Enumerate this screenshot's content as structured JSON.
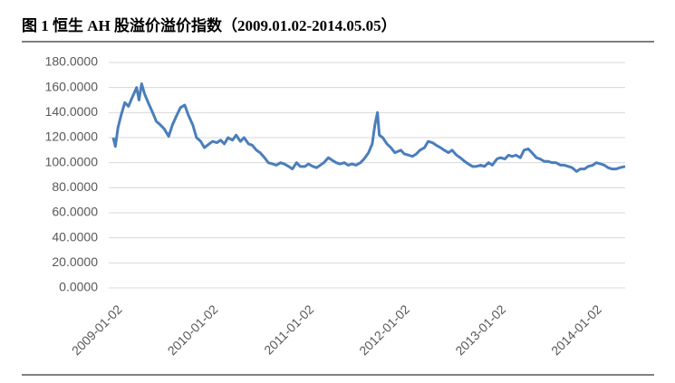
{
  "chart_data": {
    "type": "line",
    "title": "图 1  恒生 AH 股溢价溢价指数（2009.01.02-2014.05.05）",
    "x": [
      "2009-01-02",
      "2009-01-10",
      "2009-01-20",
      "2009-02-01",
      "2009-02-15",
      "2009-03-01",
      "2009-03-15",
      "2009-04-01",
      "2009-04-10",
      "2009-04-20",
      "2009-05-01",
      "2009-05-15",
      "2009-06-01",
      "2009-06-15",
      "2009-07-01",
      "2009-07-15",
      "2009-08-01",
      "2009-08-15",
      "2009-09-01",
      "2009-09-15",
      "2009-10-01",
      "2009-10-15",
      "2009-11-01",
      "2009-11-15",
      "2009-12-01",
      "2009-12-15",
      "2010-01-02",
      "2010-01-15",
      "2010-02-01",
      "2010-02-15",
      "2010-03-01",
      "2010-03-15",
      "2010-04-01",
      "2010-04-15",
      "2010-05-01",
      "2010-05-15",
      "2010-06-01",
      "2010-06-15",
      "2010-07-01",
      "2010-07-15",
      "2010-08-01",
      "2010-08-15",
      "2010-09-01",
      "2010-09-15",
      "2010-10-01",
      "2010-10-15",
      "2010-11-01",
      "2010-11-15",
      "2010-12-01",
      "2010-12-15",
      "2011-01-02",
      "2011-01-15",
      "2011-02-01",
      "2011-02-15",
      "2011-03-01",
      "2011-03-15",
      "2011-04-01",
      "2011-04-15",
      "2011-05-01",
      "2011-05-15",
      "2011-06-01",
      "2011-06-15",
      "2011-07-01",
      "2011-07-15",
      "2011-08-01",
      "2011-08-15",
      "2011-09-01",
      "2011-09-15",
      "2011-09-25",
      "2011-10-05",
      "2011-10-12",
      "2011-10-25",
      "2011-11-10",
      "2011-11-25",
      "2011-12-10",
      "2012-01-02",
      "2012-01-15",
      "2012-02-01",
      "2012-02-15",
      "2012-03-01",
      "2012-03-15",
      "2012-04-01",
      "2012-04-15",
      "2012-05-01",
      "2012-05-15",
      "2012-06-01",
      "2012-06-15",
      "2012-07-01",
      "2012-07-15",
      "2012-08-01",
      "2012-08-15",
      "2012-09-01",
      "2012-09-15",
      "2012-10-01",
      "2012-10-15",
      "2012-11-01",
      "2012-11-15",
      "2012-12-01",
      "2012-12-15",
      "2013-01-02",
      "2013-01-15",
      "2013-02-01",
      "2013-02-15",
      "2013-03-01",
      "2013-03-15",
      "2013-04-01",
      "2013-04-15",
      "2013-05-01",
      "2013-05-15",
      "2013-06-01",
      "2013-06-15",
      "2013-07-01",
      "2013-07-15",
      "2013-08-01",
      "2013-08-15",
      "2013-09-01",
      "2013-09-15",
      "2013-10-01",
      "2013-10-15",
      "2013-11-01",
      "2013-11-15",
      "2013-12-01",
      "2013-12-15",
      "2014-01-02",
      "2014-01-15",
      "2014-02-01",
      "2014-02-15",
      "2014-03-01",
      "2014-03-15",
      "2014-04-01",
      "2014-04-15",
      "2014-05-05"
    ],
    "series": [
      {
        "color": "#4a7ebb",
        "values": [
          120,
          113,
          128,
          138,
          148,
          145,
          152,
          160,
          150,
          163,
          155,
          148,
          140,
          133,
          130,
          127,
          121,
          130,
          138,
          144,
          146,
          138,
          130,
          120,
          117,
          112,
          115,
          117,
          116,
          118,
          115,
          120,
          118,
          122,
          117,
          120,
          115,
          114,
          110,
          108,
          104,
          100,
          99,
          98,
          100,
          99,
          97,
          95,
          100,
          97,
          97,
          99,
          97,
          96,
          98,
          100,
          104,
          102,
          100,
          99,
          100,
          98,
          99,
          98,
          100,
          103,
          108,
          115,
          130,
          140,
          122,
          120,
          115,
          112,
          108,
          110,
          107,
          106,
          105,
          107,
          110,
          112,
          117,
          116,
          114,
          112,
          110,
          108,
          110,
          106,
          104,
          101,
          99,
          97,
          97,
          98,
          97,
          100,
          98,
          103,
          104,
          103,
          106,
          105,
          106,
          104,
          110,
          111,
          108,
          104,
          103,
          101,
          101,
          100,
          100,
          98,
          98,
          97,
          96,
          93,
          95,
          95,
          97,
          98,
          100,
          99,
          98,
          96,
          95,
          95,
          96,
          97
        ]
      }
    ],
    "xlim": [
      "2009-01-02",
      "2014-05-05"
    ],
    "xticks": [
      "2009-01-02",
      "2010-01-02",
      "2011-01-02",
      "2012-01-02",
      "2013-01-02",
      "2014-01-02"
    ],
    "ylim": [
      0,
      180
    ],
    "yticks": [
      {
        "value": 0,
        "label": "0.0000"
      },
      {
        "value": 20,
        "label": "20.0000"
      },
      {
        "value": 40,
        "label": "40.0000"
      },
      {
        "value": 60,
        "label": "60.0000"
      },
      {
        "value": 80,
        "label": "80.0000"
      },
      {
        "value": 100,
        "label": "100.0000"
      },
      {
        "value": 120,
        "label": "120.0000"
      },
      {
        "value": 140,
        "label": "140.0000"
      },
      {
        "value": 160,
        "label": "160.0000"
      },
      {
        "value": 180,
        "label": "180.0000"
      }
    ],
    "grid": true
  }
}
